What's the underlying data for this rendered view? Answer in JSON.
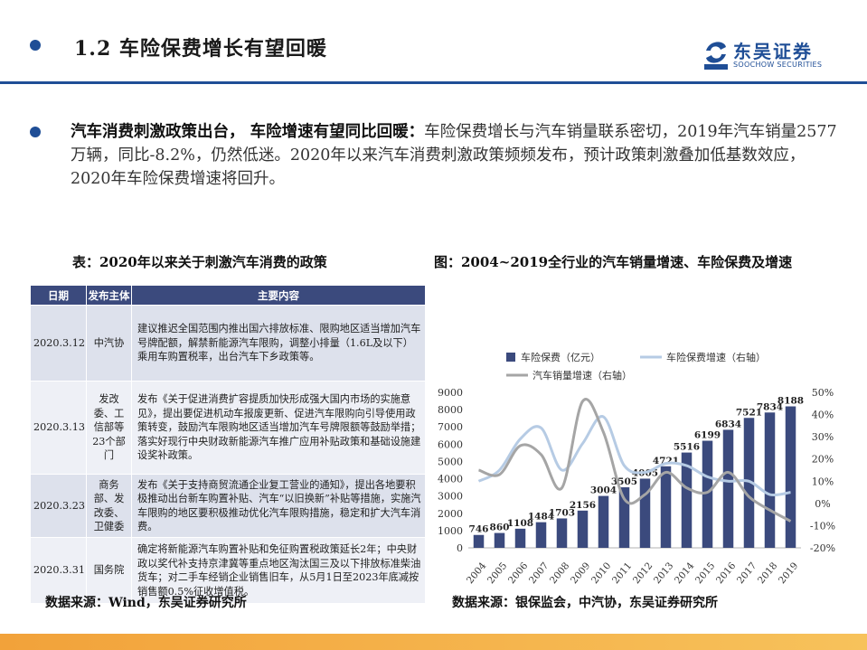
{
  "header": {
    "title": "1.2 车险保费增长有望回暖",
    "logo_cn": "东吴证券",
    "logo_en": "SOOCHOW SECURITIES"
  },
  "bullet": {
    "bold_text": "汽车消费刺激政策出台， 车险增速有望同比回暖：",
    "body_text": "车险保费增长与汽车销量联系密切，2019年汽车销量2577万辆，同比-8.2%，仍然低迷。2020年以来汽车消费刺激政策频频发布，预计政策刺激叠加低基数效应，2020年车险保费增速将回升。"
  },
  "table_caption": "表：2020年以来关于刺激汽车消费的政策",
  "chart_caption": "图：2004~2019全行业的汽车销量增速、车险保费及增速",
  "table": {
    "headers": [
      "日期",
      "发布主体",
      "主要内容"
    ],
    "rows": [
      {
        "date": "2020.3.12",
        "issuer": "中汽协",
        "content": "建议推迟全国范围内推出国六排放标准、限购地区适当增加汽车号牌配额，解禁新能源汽车限购，调整小排量（1.6L及以下）乘用车购置税率，出台汽车下乡政策等。"
      },
      {
        "date": "2020.3.13",
        "issuer": "发改委、工信部等23个部门",
        "content": "发布《关于促进消费扩容提质加快形成强大国内市场的实施意见》，提出要促进机动车报废更新、促进汽车限购向引导使用政策转变，鼓励汽车限购地区适当增加汽车号牌限额等鼓励举措；落实好现行中央财政新能源汽车推广应用补贴政策和基础设施建设奖补政策。"
      },
      {
        "date": "2020.3.23",
        "issuer": "商务部、发改委、卫健委",
        "content": "发布《关于支持商贸流通企业复工营业的通知》，提出各地要积极推动出台新车购置补贴、汽车“以旧换新”补贴等措施，实施汽车限购的地区要积极推动优化汽车限购措施，稳定和扩大汽车消费。"
      },
      {
        "date": "2020.3.31",
        "issuer": "国务院",
        "content": "确定将新能源汽车购置补贴和免征购置税政策延长2年；中央财政以奖代补支持京津冀等重点地区淘汰国三及以下排放标准柴油货车；对二手车经销企业销售旧车，从5月1日至2023年底减按销售额0.5%征收增值税。"
      }
    ]
  },
  "source_left": "数据来源：Wind，东吴证券研究所",
  "source_right": "数据来源：银保监会，中汽协，东吴证券研究所",
  "chart_data": {
    "type": "bar",
    "categories": [
      "2004",
      "2005",
      "2006",
      "2007",
      "2008",
      "2009",
      "2010",
      "2011",
      "2012",
      "2013",
      "2014",
      "2015",
      "2016",
      "2017",
      "2018",
      "2019"
    ],
    "series": [
      {
        "name": "车险保费（亿元）",
        "axis": "left",
        "kind": "bar",
        "color": "#3b4a7d",
        "values": [
          746,
          860,
          1108,
          1484,
          1703,
          2156,
          3004,
          3505,
          4005,
          4721,
          5516,
          6199,
          6834,
          7521,
          7834,
          8188
        ]
      },
      {
        "name": "车险保费增速（右轴）",
        "axis": "right",
        "kind": "line",
        "color": "#b6cbe4",
        "values": [
          10,
          15,
          29,
          34,
          15,
          27,
          39,
          17,
          14,
          18,
          17,
          12,
          10,
          10,
          4,
          5
        ]
      },
      {
        "name": "汽车销量增速（右轴）",
        "axis": "right",
        "kind": "line",
        "color": "#a5a5a5",
        "values": [
          15,
          13,
          26,
          22,
          7,
          46,
          32,
          2,
          4,
          14,
          7,
          5,
          14,
          3,
          -3,
          -8
        ]
      }
    ],
    "y_left": {
      "min": 0,
      "max": 9000,
      "ticks": [
        0,
        1000,
        2000,
        3000,
        4000,
        5000,
        6000,
        7000,
        8000,
        9000
      ]
    },
    "y_right": {
      "min": -20,
      "max": 50,
      "ticks": [
        "-20%",
        "-10%",
        "0%",
        "10%",
        "20%",
        "30%",
        "40%",
        "50%"
      ]
    },
    "legend_position": "top-left",
    "grid": false
  }
}
